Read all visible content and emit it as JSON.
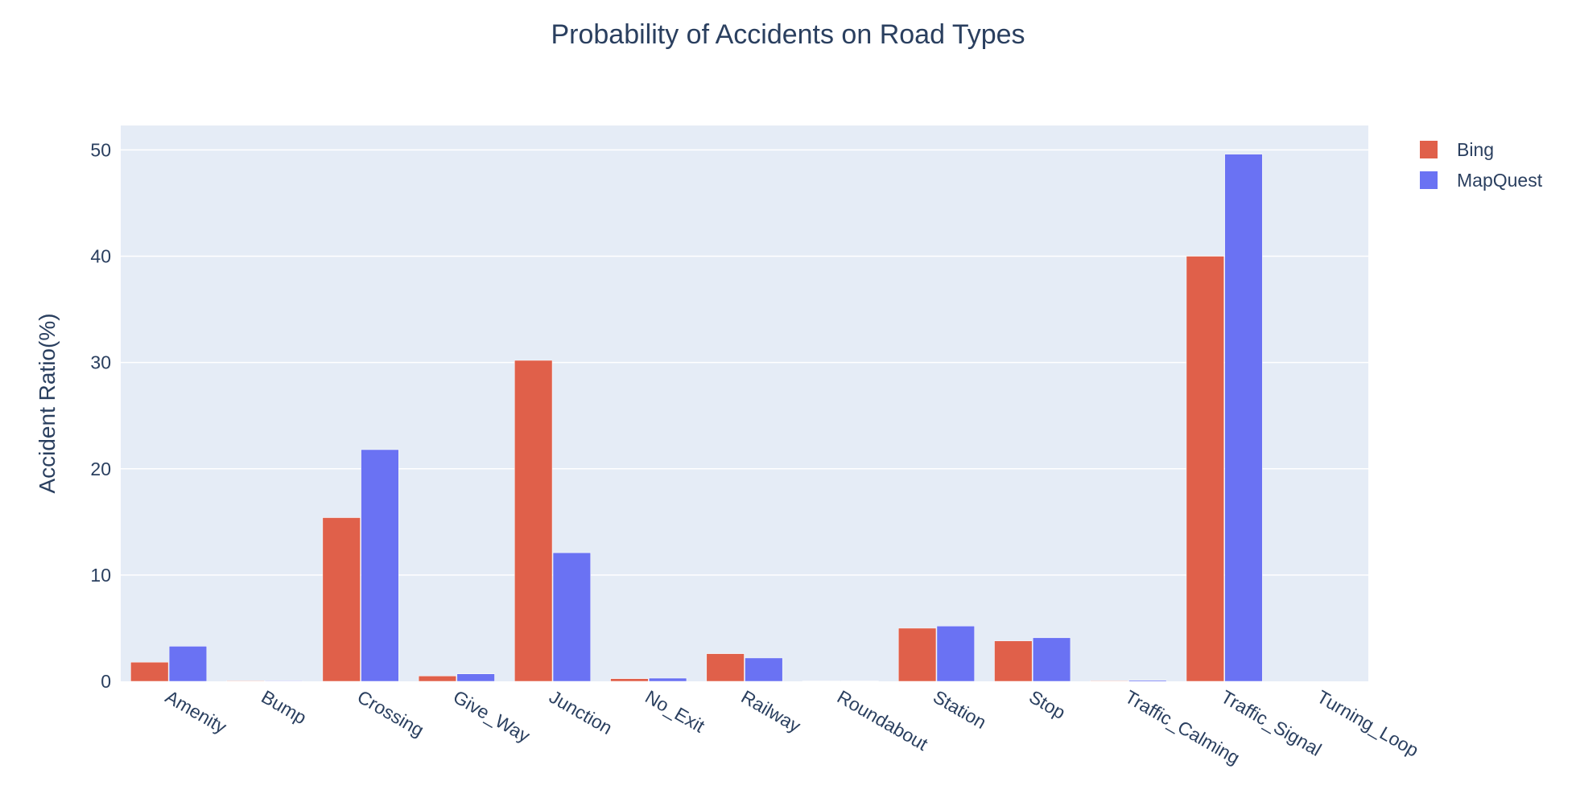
{
  "chart_data": {
    "type": "bar",
    "title": "Probability of Accidents on Road Types",
    "xlabel": "",
    "ylabel": "Accident Ratio(%)",
    "ylim": [
      0,
      52.3
    ],
    "yticks": [
      0,
      10,
      20,
      30,
      40,
      50
    ],
    "grid": true,
    "legend_position": "top-right",
    "categories": [
      "Amenity",
      "Bump",
      "Crossing",
      "Give_Way",
      "Junction",
      "No_Exit",
      "Railway",
      "Roundabout",
      "Station",
      "Stop",
      "Traffic_Calming",
      "Traffic_Signal",
      "Turning_Loop"
    ],
    "series": [
      {
        "name": "Bing",
        "color": "#e0604a",
        "values": [
          1.8,
          0.05,
          15.4,
          0.5,
          30.2,
          0.25,
          2.6,
          0.03,
          5.0,
          3.8,
          0.05,
          40.0,
          0.0
        ]
      },
      {
        "name": "MapQuest",
        "color": "#6a72f3",
        "values": [
          3.3,
          0.05,
          21.8,
          0.7,
          12.1,
          0.3,
          2.2,
          0.03,
          5.2,
          4.1,
          0.1,
          49.6,
          0.0
        ]
      }
    ],
    "colors": {
      "plot_background": "#e5ecf6",
      "gridline": "#ffffff",
      "text": "#2a3f5f"
    }
  }
}
